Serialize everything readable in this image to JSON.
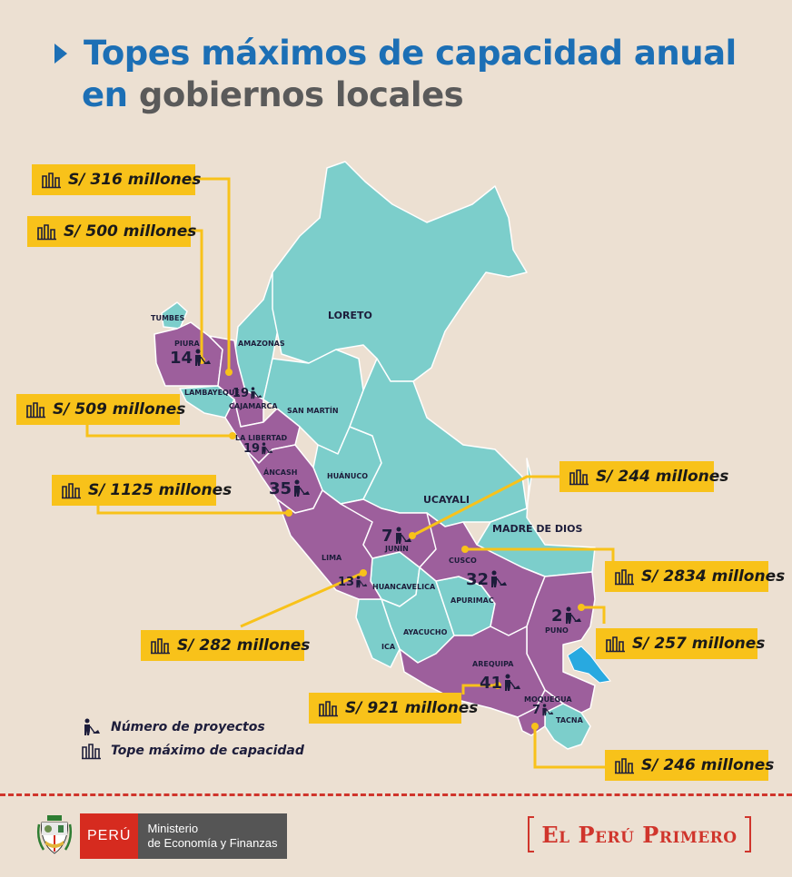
{
  "title": {
    "line1": "Topes máximos de capacidad anual",
    "line2_a": "en",
    "line2_b": "gobiernos locales"
  },
  "colors": {
    "program_region": "#9d5f9c",
    "other_region": "#7ccecb",
    "callout": "#f8c21a",
    "lake": "#28a9e0",
    "title_blue": "#1c6fb5"
  },
  "regions": {
    "tumbes": "TUMBES",
    "piura": "PIURA",
    "lambayeque": "LAMBAYEQUE",
    "amazonas": "AMAZONAS",
    "cajamarca": "CAJAMARCA",
    "la_libertad": "LA LIBERTAD",
    "san_martin": "SAN MARTÍN",
    "loreto": "LORETO",
    "ancash": "ÁNCASH",
    "huanuco": "HUÁNUCO",
    "ucayali": "UCAYALI",
    "madre_de_dios": "MADRE DE DIOS",
    "junin": "JUNÍN",
    "cusco": "CUSCO",
    "lima": "LIMA",
    "huancavelica": "HUANCAVELICA",
    "apurimac": "APURIMAC",
    "ayacucho": "AYACUCHO",
    "ica": "ICA",
    "puno": "PUNO",
    "arequipa": "AREQUIPA",
    "moquegua": "MOQUEGUA",
    "tacna": "TACNA"
  },
  "projects": {
    "piura": "14",
    "cajamarca": "19",
    "la_libertad": "19",
    "ancash": "35",
    "junin": "7",
    "cusco": "32",
    "lima": "13",
    "puno": "2",
    "arequipa": "41",
    "moquegua": "7"
  },
  "callouts": {
    "cajamarca": "S/ 316 millones",
    "piura": "S/ 500 millones",
    "la_libertad": "S/ 509 millones",
    "ancash": "S/ 1125 millones",
    "junin": "S/ 244 millones",
    "cusco": "S/ 2834 millones",
    "lima": "S/ 282 millones",
    "puno": "S/ 257 millones",
    "arequipa": "S/ 921 millones",
    "moquegua": "S/ 246 millones"
  },
  "legend": {
    "projects": "Número de proyectos",
    "capacity": "Tope máximo de capacidad"
  },
  "footer": {
    "peru": "PERÚ",
    "ministry_1": "Ministerio",
    "ministry_2": "de Economía y Finanzas",
    "brand": "El Perú Primero"
  }
}
